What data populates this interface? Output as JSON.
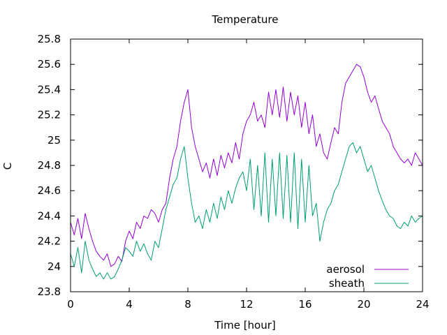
{
  "chart_data": {
    "type": "line",
    "title": "Temperature",
    "xlabel": "Time [hour]",
    "ylabel": "C",
    "xlim": [
      0,
      24
    ],
    "ylim": [
      23.8,
      25.8
    ],
    "xticks": [
      0,
      4,
      8,
      12,
      16,
      20,
      24
    ],
    "yticks": [
      23.8,
      24,
      24.2,
      24.4,
      24.6,
      24.8,
      25,
      25.2,
      25.4,
      25.6,
      25.8
    ],
    "grid": false,
    "legend_position": "bottom-right",
    "series": [
      {
        "name": "aerosol",
        "color": "#9400d3",
        "x": [
          0,
          0.25,
          0.5,
          0.75,
          1,
          1.25,
          1.5,
          1.75,
          2,
          2.25,
          2.5,
          2.75,
          3,
          3.25,
          3.5,
          3.75,
          4,
          4.25,
          4.5,
          4.75,
          5,
          5.25,
          5.5,
          5.75,
          6,
          6.25,
          6.5,
          6.75,
          7,
          7.25,
          7.5,
          7.75,
          8,
          8.25,
          8.5,
          8.75,
          9,
          9.25,
          9.5,
          9.75,
          10,
          10.25,
          10.5,
          10.75,
          11,
          11.25,
          11.5,
          11.75,
          12,
          12.25,
          12.5,
          12.75,
          13,
          13.25,
          13.5,
          13.75,
          14,
          14.25,
          14.5,
          14.75,
          15,
          15.25,
          15.5,
          15.75,
          16,
          16.25,
          16.5,
          16.75,
          17,
          17.25,
          17.5,
          17.75,
          18,
          18.25,
          18.5,
          18.75,
          19,
          19.25,
          19.5,
          19.75,
          20,
          20.25,
          20.5,
          20.75,
          21,
          21.25,
          21.5,
          21.75,
          22,
          22.25,
          22.5,
          22.75,
          23,
          23.25,
          23.5,
          23.75,
          24
        ],
        "y": [
          24.35,
          24.25,
          24.38,
          24.22,
          24.42,
          24.3,
          24.2,
          24.12,
          24.08,
          24.05,
          24.1,
          24.0,
          24.02,
          24.08,
          24.04,
          24.2,
          24.28,
          24.22,
          24.35,
          24.3,
          24.4,
          24.38,
          24.45,
          24.42,
          24.35,
          24.45,
          24.5,
          24.7,
          24.85,
          24.95,
          25.15,
          25.3,
          25.4,
          25.1,
          24.95,
          24.85,
          24.75,
          24.82,
          24.7,
          24.85,
          24.72,
          24.88,
          24.78,
          24.9,
          24.82,
          24.98,
          24.85,
          25.05,
          25.15,
          25.2,
          25.3,
          25.15,
          25.2,
          25.1,
          25.38,
          25.2,
          25.4,
          25.18,
          25.42,
          25.15,
          25.38,
          25.2,
          25.35,
          25.1,
          25.3,
          25.05,
          25.2,
          24.95,
          25.05,
          24.9,
          24.85,
          24.98,
          25.1,
          25.05,
          25.3,
          25.45,
          25.5,
          25.55,
          25.6,
          25.58,
          25.5,
          25.38,
          25.3,
          25.35,
          25.25,
          25.15,
          25.1,
          25.05,
          24.95,
          24.9,
          24.85,
          24.82,
          24.85,
          24.8,
          24.9,
          24.85,
          24.8
        ]
      },
      {
        "name": "sheath",
        "color": "#009e73",
        "x": [
          0,
          0.25,
          0.5,
          0.75,
          1,
          1.25,
          1.5,
          1.75,
          2,
          2.25,
          2.5,
          2.75,
          3,
          3.25,
          3.5,
          3.75,
          4,
          4.25,
          4.5,
          4.75,
          5,
          5.25,
          5.5,
          5.75,
          6,
          6.25,
          6.5,
          6.75,
          7,
          7.25,
          7.5,
          7.75,
          8,
          8.25,
          8.5,
          8.75,
          9,
          9.25,
          9.5,
          9.75,
          10,
          10.25,
          10.5,
          10.75,
          11,
          11.25,
          11.5,
          11.75,
          12,
          12.25,
          12.5,
          12.75,
          13,
          13.25,
          13.5,
          13.75,
          14,
          14.25,
          14.5,
          14.75,
          15,
          15.25,
          15.5,
          15.75,
          16,
          16.25,
          16.5,
          16.75,
          17,
          17.25,
          17.5,
          17.75,
          18,
          18.25,
          18.5,
          18.75,
          19,
          19.25,
          19.5,
          19.75,
          20,
          20.25,
          20.5,
          20.75,
          21,
          21.25,
          21.5,
          21.75,
          22,
          22.25,
          22.5,
          22.75,
          23,
          23.25,
          23.5,
          23.75,
          24
        ],
        "y": [
          24.1,
          24.0,
          24.15,
          23.95,
          24.2,
          24.05,
          23.98,
          23.92,
          23.95,
          23.9,
          23.95,
          23.9,
          23.92,
          23.98,
          24.05,
          24.15,
          24.12,
          24.08,
          24.2,
          24.12,
          24.18,
          24.1,
          24.05,
          24.2,
          24.15,
          24.3,
          24.45,
          24.55,
          24.65,
          24.7,
          24.85,
          24.95,
          24.7,
          24.5,
          24.35,
          24.4,
          24.3,
          24.45,
          24.35,
          24.5,
          24.38,
          24.55,
          24.45,
          24.6,
          24.5,
          24.62,
          24.7,
          24.75,
          24.6,
          24.85,
          24.45,
          24.8,
          24.4,
          24.9,
          24.35,
          24.85,
          24.4,
          24.9,
          24.38,
          24.88,
          24.35,
          24.9,
          24.3,
          24.85,
          24.35,
          24.8,
          24.4,
          24.5,
          24.2,
          24.35,
          24.45,
          24.5,
          24.6,
          24.65,
          24.75,
          24.85,
          24.95,
          24.98,
          24.9,
          24.95,
          24.85,
          24.75,
          24.8,
          24.7,
          24.6,
          24.52,
          24.45,
          24.4,
          24.38,
          24.32,
          24.3,
          24.35,
          24.32,
          24.4,
          24.35,
          24.38,
          24.4
        ]
      }
    ]
  }
}
